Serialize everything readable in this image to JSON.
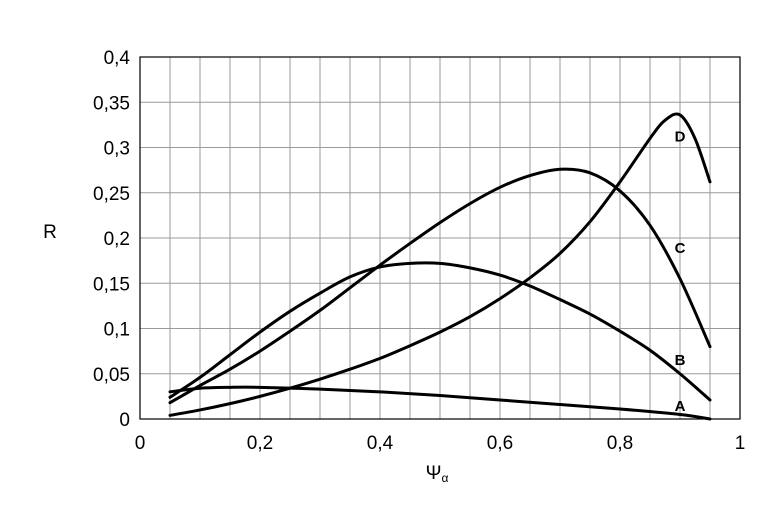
{
  "chart_data": {
    "type": "line",
    "xlabel": "Ψ",
    "xlabel_subscript": "α",
    "ylabel": "R",
    "xlim": [
      0,
      1
    ],
    "ylim": [
      0,
      0.4
    ],
    "x_grid_step": 0.05,
    "y_grid_step": 0.05,
    "grid": true,
    "x_ticks": [
      0,
      0.2,
      0.4,
      0.6,
      0.8,
      1
    ],
    "x_tick_labels": [
      "0",
      "0,2",
      "0,4",
      "0,6",
      "0,8",
      "1"
    ],
    "y_ticks": [
      0,
      0.05,
      0.1,
      0.15,
      0.2,
      0.25,
      0.3,
      0.35,
      0.4
    ],
    "y_tick_labels": [
      "0",
      "0,05",
      "0,1",
      "0,15",
      "0,2",
      "0,25",
      "0,3",
      "0,35",
      "0,4"
    ],
    "series": [
      {
        "name": "A",
        "label_at": [
          0.9,
          0.013
        ],
        "x": [
          0.05,
          0.1,
          0.15,
          0.2,
          0.3,
          0.4,
          0.5,
          0.6,
          0.7,
          0.8,
          0.9,
          0.95
        ],
        "y": [
          0.03,
          0.034,
          0.035,
          0.035,
          0.033,
          0.03,
          0.026,
          0.021,
          0.016,
          0.011,
          0.005,
          0.0
        ]
      },
      {
        "name": "B",
        "label_at": [
          0.9,
          0.064
        ],
        "x": [
          0.05,
          0.1,
          0.15,
          0.2,
          0.25,
          0.3,
          0.35,
          0.4,
          0.45,
          0.5,
          0.55,
          0.6,
          0.65,
          0.7,
          0.75,
          0.8,
          0.85,
          0.9,
          0.95
        ],
        "y": [
          0.024,
          0.046,
          0.071,
          0.096,
          0.119,
          0.139,
          0.157,
          0.168,
          0.172,
          0.172,
          0.167,
          0.159,
          0.147,
          0.132,
          0.116,
          0.097,
          0.076,
          0.05,
          0.021
        ]
      },
      {
        "name": "C",
        "label_at": [
          0.9,
          0.188
        ],
        "x": [
          0.05,
          0.1,
          0.15,
          0.2,
          0.25,
          0.3,
          0.35,
          0.4,
          0.45,
          0.5,
          0.55,
          0.6,
          0.65,
          0.7,
          0.75,
          0.8,
          0.85,
          0.9,
          0.95
        ],
        "y": [
          0.018,
          0.037,
          0.055,
          0.075,
          0.097,
          0.12,
          0.145,
          0.17,
          0.194,
          0.217,
          0.238,
          0.256,
          0.269,
          0.276,
          0.272,
          0.252,
          0.214,
          0.155,
          0.08
        ]
      },
      {
        "name": "D",
        "label_at": [
          0.9,
          0.311
        ],
        "x": [
          0.05,
          0.1,
          0.15,
          0.2,
          0.25,
          0.3,
          0.35,
          0.4,
          0.45,
          0.5,
          0.55,
          0.6,
          0.65,
          0.7,
          0.75,
          0.8,
          0.85,
          0.875,
          0.9,
          0.925,
          0.95
        ],
        "y": [
          0.004,
          0.01,
          0.017,
          0.025,
          0.034,
          0.044,
          0.055,
          0.067,
          0.081,
          0.096,
          0.113,
          0.133,
          0.156,
          0.183,
          0.218,
          0.262,
          0.31,
          0.33,
          0.336,
          0.31,
          0.262
        ]
      }
    ]
  }
}
